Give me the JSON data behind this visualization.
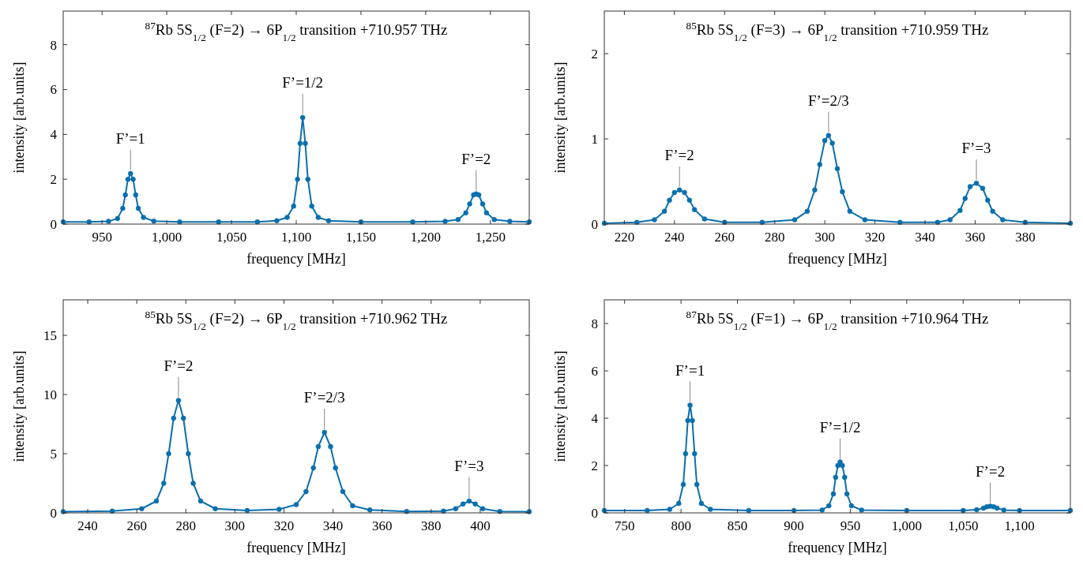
{
  "chart_data": [
    {
      "type": "line",
      "title": "$^{87}$Rb 5S$_{1/2}$ (F=2) → 6P$_{1/2}$ transition +710.957 THz",
      "xlabel": "frequency [MHz]",
      "ylabel": "intensity [arb.units]",
      "marker": "circle",
      "line_style": "solid",
      "grid": false,
      "xlim": [
        920,
        1280
      ],
      "xticks": [
        950,
        {
          "value": 1000,
          "label": "1,000"
        },
        {
          "value": 1050,
          "label": "1,050"
        },
        {
          "value": 1100,
          "label": "1,100"
        },
        {
          "value": 1150,
          "label": "1,150"
        },
        {
          "value": 1200,
          "label": "1,200"
        },
        {
          "value": 1250,
          "label": "1,250"
        }
      ],
      "ylim": [
        0,
        9.5
      ],
      "yticks": [
        0,
        2,
        4,
        6,
        8
      ],
      "annotations": [
        {
          "text": "F’=1",
          "x": 972,
          "y": 2.25
        },
        {
          "text": "F’=1/2",
          "x": 1105,
          "y": 4.75
        },
        {
          "text": "F’=2",
          "x": 1239,
          "y": 1.35
        }
      ],
      "series": [
        {
          "color": "#0b6fad",
          "x": [
            920,
            940,
            955,
            962,
            966,
            968,
            970,
            972,
            974,
            976,
            978,
            982,
            990,
            1010,
            1040,
            1070,
            1085,
            1093,
            1098,
            1101,
            1103,
            1105,
            1107,
            1109,
            1112,
            1117,
            1125,
            1150,
            1190,
            1215,
            1225,
            1231,
            1234,
            1237,
            1239,
            1241,
            1244,
            1247,
            1253,
            1265,
            1280
          ],
          "values": [
            0.1,
            0.1,
            0.12,
            0.25,
            0.7,
            1.3,
            2.0,
            2.25,
            2.0,
            1.3,
            0.7,
            0.3,
            0.13,
            0.1,
            0.1,
            0.1,
            0.15,
            0.3,
            0.8,
            2.0,
            3.6,
            4.75,
            3.6,
            2.0,
            0.8,
            0.3,
            0.15,
            0.1,
            0.1,
            0.12,
            0.2,
            0.5,
            0.9,
            1.3,
            1.35,
            1.3,
            0.9,
            0.5,
            0.2,
            0.12,
            0.1
          ]
        }
      ]
    },
    {
      "type": "line",
      "title": "$^{85}$Rb 5S$_{1/2}$ (F=3) → 6P$_{1/2}$ transition +710.959 THz",
      "xlabel": "frequency [MHz]",
      "ylabel": "intensity [arb.units]",
      "marker": "circle",
      "line_style": "solid",
      "grid": false,
      "xlim": [
        212,
        398
      ],
      "xticks": [
        220,
        240,
        260,
        280,
        300,
        320,
        340,
        360,
        380
      ],
      "ylim": [
        0,
        2.5
      ],
      "yticks": [
        0,
        1,
        2
      ],
      "annotations": [
        {
          "text": "F’=2",
          "x": 242,
          "y": 0.4
        },
        {
          "text": "F’=2/3",
          "x": 301.5,
          "y": 1.04
        },
        {
          "text": "F’=3",
          "x": 360.5,
          "y": 0.48
        }
      ],
      "series": [
        {
          "color": "#0b6fad",
          "x": [
            212,
            225,
            232,
            236,
            238,
            240,
            242,
            244,
            246,
            248,
            252,
            260,
            275,
            288,
            293,
            296,
            298,
            300,
            301.5,
            303,
            305,
            307,
            310,
            316,
            330,
            345,
            350,
            354,
            356,
            358,
            360.5,
            363,
            365,
            367,
            371,
            380,
            398
          ],
          "values": [
            0.01,
            0.02,
            0.05,
            0.15,
            0.28,
            0.37,
            0.4,
            0.37,
            0.28,
            0.17,
            0.06,
            0.02,
            0.02,
            0.05,
            0.15,
            0.4,
            0.7,
            0.98,
            1.04,
            0.95,
            0.65,
            0.38,
            0.15,
            0.05,
            0.02,
            0.02,
            0.05,
            0.16,
            0.3,
            0.44,
            0.48,
            0.42,
            0.28,
            0.15,
            0.05,
            0.02,
            0.01
          ]
        }
      ]
    },
    {
      "type": "line",
      "title": "$^{85}$Rb 5S$_{1/2}$ (F=2) → 6P$_{1/2}$ transition +710.962 THz",
      "xlabel": "frequency [MHz]",
      "ylabel": "intensity [arb.units]",
      "marker": "circle",
      "line_style": "solid",
      "grid": false,
      "xlim": [
        230,
        420
      ],
      "xticks": [
        240,
        260,
        280,
        300,
        320,
        340,
        360,
        380,
        400
      ],
      "ylim": [
        0,
        18
      ],
      "yticks": [
        0,
        5,
        10,
        15
      ],
      "annotations": [
        {
          "text": "F’=2",
          "x": 277,
          "y": 9.5
        },
        {
          "text": "F’=2/3",
          "x": 336.5,
          "y": 6.8
        },
        {
          "text": "F’=3",
          "x": 395.5,
          "y": 1.0
        }
      ],
      "series": [
        {
          "color": "#0b6fad",
          "x": [
            230,
            250,
            262,
            268,
            271,
            273,
            275,
            277,
            279,
            281,
            283,
            286,
            292,
            305,
            318,
            325,
            329,
            332,
            334,
            336.5,
            339,
            341,
            344,
            348,
            355,
            370,
            385,
            390,
            393,
            395.5,
            398,
            401,
            408,
            420
          ],
          "values": [
            0.1,
            0.15,
            0.35,
            1.0,
            2.5,
            5.0,
            8.0,
            9.5,
            8.0,
            5.0,
            2.5,
            1.0,
            0.35,
            0.2,
            0.3,
            0.7,
            1.8,
            3.8,
            5.6,
            6.8,
            5.6,
            3.8,
            1.8,
            0.6,
            0.25,
            0.12,
            0.15,
            0.35,
            0.75,
            1.0,
            0.75,
            0.35,
            0.12,
            0.1
          ]
        }
      ]
    },
    {
      "type": "line",
      "title": "$^{87}$Rb 5S$_{1/2}$ (F=1) → 6P$_{1/2}$ transition +710.964 THz",
      "xlabel": "frequency [MHz]",
      "ylabel": "intensity [arb.units]",
      "marker": "circle",
      "line_style": "solid",
      "grid": false,
      "xlim": [
        732,
        1145
      ],
      "xticks": [
        750,
        800,
        850,
        900,
        950,
        {
          "value": 1000,
          "label": "1,000"
        },
        {
          "value": 1050,
          "label": "1,050"
        },
        {
          "value": 1100,
          "label": "1,100"
        }
      ],
      "ylim": [
        0,
        9
      ],
      "yticks": [
        0,
        2,
        4,
        6,
        8
      ],
      "annotations": [
        {
          "text": "F’=1",
          "x": 808,
          "y": 4.55
        },
        {
          "text": "F’=1/2",
          "x": 941,
          "y": 2.15
        },
        {
          "text": "F’=2",
          "x": 1074,
          "y": 0.28
        }
      ],
      "series": [
        {
          "color": "#0b6fad",
          "x": [
            732,
            770,
            790,
            798,
            802,
            804,
            806,
            808,
            810,
            812,
            814,
            818,
            826,
            860,
            900,
            925,
            931,
            935,
            937,
            939,
            941,
            943,
            945,
            947,
            951,
            960,
            1000,
            1050,
            1062,
            1068,
            1071,
            1074,
            1077,
            1080,
            1086,
            1100,
            1145
          ],
          "values": [
            0.1,
            0.1,
            0.15,
            0.4,
            1.2,
            2.5,
            3.9,
            4.55,
            3.9,
            2.5,
            1.2,
            0.4,
            0.15,
            0.1,
            0.1,
            0.12,
            0.3,
            0.8,
            1.5,
            2.0,
            2.15,
            2.0,
            1.5,
            0.8,
            0.3,
            0.12,
            0.1,
            0.1,
            0.13,
            0.2,
            0.26,
            0.28,
            0.26,
            0.2,
            0.12,
            0.1,
            0.1
          ]
        }
      ]
    }
  ]
}
